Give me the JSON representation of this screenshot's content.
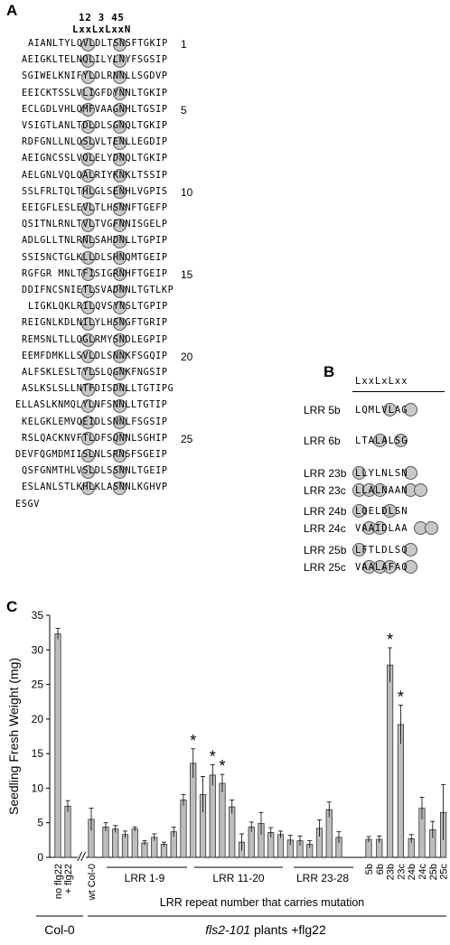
{
  "panel_a": {
    "label": "A",
    "header_numbers": "12 3 45",
    "header_motif": "LxxLxLxxN",
    "rows": [
      {
        "text": "AIANLTYLQVLDLTSNSFTGKIP",
        "indent": 1,
        "num": "1"
      },
      {
        "text": "AEIGKLTELNQLILYLNYFSGSIP",
        "indent": 0,
        "num": ""
      },
      {
        "text": "SGIWELKNIFYLDLRNNLLSGDVP",
        "indent": 0,
        "num": ""
      },
      {
        "text": "EEICKTSSLVLIGFDYNNLTGKIP",
        "indent": 0,
        "num": ""
      },
      {
        "text": "ECLGDLVHLQMFVAAGNHLTGSIP",
        "indent": 0,
        "num": "5"
      },
      {
        "text": "VSIGTLANLTDLDLSGNQLTGKIP",
        "indent": 0,
        "num": ""
      },
      {
        "text": "RDFGNLLNLQSLVLTENLLEGDIP",
        "indent": 0,
        "num": ""
      },
      {
        "text": "AEIGNCSSLVQLELYDNQLTGKIP",
        "indent": 0,
        "num": ""
      },
      {
        "text": "AELGNLVQLQALRIYKNKLTSSIP",
        "indent": 0,
        "num": ""
      },
      {
        "text": "SSLFRLTQLTHLGLSENHLVGPIS",
        "indent": 0,
        "num": "10"
      },
      {
        "text": "EEIGFLESLEVLTLHSNNFTGEFP",
        "indent": 0,
        "num": ""
      },
      {
        "text": "QSITNLRNLTVLTVGFNNISGELP",
        "indent": 0,
        "num": ""
      },
      {
        "text": "ADLGLLTNLRNLSAHDNLLTGPIP",
        "indent": 0,
        "num": ""
      },
      {
        "text": "SSISNCTGLKLLDLSHNQMTGEIP",
        "indent": 0,
        "num": ""
      },
      {
        "text": "RGFGR MNLTFISIGRNHFTGEIP",
        "indent": 0,
        "num": "15"
      },
      {
        "text": "DDIFNCSNIETLSVADNNLTGTLKP",
        "indent": 0,
        "num": ""
      },
      {
        "text": "LIGKLQKLRILQVSYNSLTGPIP",
        "indent": 1,
        "num": ""
      },
      {
        "text": "REIGNLKDLNILYLHSNGFTGRIP",
        "indent": 0,
        "num": ""
      },
      {
        "text": "REMSNLTLLQGLRMYSNDLEGPIP",
        "indent": 0,
        "num": ""
      },
      {
        "text": "EEMFDMKLLSVLDLSNNKFSGQIP",
        "indent": 0,
        "num": "20"
      },
      {
        "text": "ALFSKLESLTYLSLQGNKFNGSIP",
        "indent": 0,
        "num": ""
      },
      {
        "text": "ASLKSLSLLNTFDISDNLLTGTIPG",
        "indent": 0,
        "num": ""
      },
      {
        "text": "ELLASLKNMQLYLNFSNNLLTGTIP",
        "indent": -1,
        "num": ""
      },
      {
        "text": "KELGKLEMVQEIDLSNNLFSGSIP",
        "indent": 0,
        "num": ""
      },
      {
        "text": "RSLQACKNVFTLDFSQNNLSGHIP",
        "indent": 0,
        "num": "25"
      },
      {
        "text": "DEVFQGMDMIISLNLSRNSFSGEIP",
        "indent": -1,
        "num": ""
      },
      {
        "text": "QSFGNMTHLVSLDLSSNNLTGEIP",
        "indent": 0,
        "num": ""
      },
      {
        "text": "ESLANLSTLKHLKLASNNLKGHVP",
        "indent": 0,
        "num": ""
      },
      {
        "text": "ESGV",
        "indent": -1,
        "num": ""
      }
    ]
  },
  "panel_b": {
    "label": "B",
    "header": "LxxLxLxx",
    "groups": [
      [
        {
          "name": "LRR 5b",
          "seq": "LQMLVLAG",
          "circles": [
            3,
            5
          ]
        }
      ],
      [
        {
          "name": "LRR 6b",
          "seq": "LTALALSG",
          "circles": [
            2,
            4
          ]
        }
      ],
      [
        {
          "name": "LRR 23b",
          "seq": "LLYLNLSN",
          "circles": [
            0,
            5
          ]
        },
        {
          "name": "LRR 23c",
          "seq": "LLALNAAN",
          "circles": [
            0,
            1,
            2,
            5,
            6
          ]
        }
      ],
      [
        {
          "name": "LRR 24b",
          "seq": "LQELDLSN",
          "circles": [
            0,
            3
          ]
        },
        {
          "name": "LRR 24c",
          "seq": "VAAIDLAA",
          "circles": [
            1,
            2,
            6,
            7
          ]
        }
      ],
      [
        {
          "name": "LRR 25b",
          "seq": "LFTLDLSQ",
          "circles": [
            0,
            5
          ]
        },
        {
          "name": "LRR 25c",
          "seq": "VAALAFAQ",
          "circles": [
            1,
            2,
            3,
            5
          ]
        }
      ]
    ]
  },
  "panel_c": {
    "label": "C",
    "chart_data": {
      "type": "bar",
      "ylabel": "Seedling Fresh Weight (mg)",
      "ylim": [
        0,
        35
      ],
      "yticks": [
        0,
        5,
        10,
        15,
        20,
        25,
        30,
        35
      ],
      "bars_col0": [
        {
          "label": "no flg22",
          "value": 32.3,
          "err": 0.8
        },
        {
          "label": "+ flg22",
          "value": 7.4,
          "err": 0.8
        }
      ],
      "wt_col0": {
        "label": "wt Col-0",
        "value": 5.5,
        "err": 1.6
      },
      "mutants_1_28": [
        4.4,
        4.1,
        3.3,
        4.1,
        2.1,
        2.9,
        1.9,
        3.7,
        8.3,
        13.6,
        9.1,
        11.9,
        10.7,
        7.3,
        2.2,
        4.4,
        4.9,
        3.6,
        3.3,
        2.5,
        2.4,
        1.9,
        4.2,
        6.9,
        2.9
      ],
      "mutants_1_28_err": [
        0.6,
        0.5,
        0.5,
        0.3,
        0.3,
        0.5,
        0.3,
        0.7,
        0.8,
        2.1,
        2.6,
        1.5,
        1.3,
        1.0,
        1.2,
        0.7,
        1.6,
        0.7,
        0.5,
        0.7,
        0.7,
        0.5,
        1.2,
        1.1,
        0.8
      ],
      "mutants_sig_index": [
        9,
        11,
        12
      ],
      "ranges": [
        {
          "label": "LRR 1-9"
        },
        {
          "label": "LRR 11-20"
        },
        {
          "label": "LRR 23-28"
        }
      ],
      "substitutions": [
        {
          "label": "5b",
          "value": 2.6,
          "err": 0.4
        },
        {
          "label": "6b",
          "value": 2.6,
          "err": 0.5
        },
        {
          "label": "23b",
          "value": 27.8,
          "err": 2.5,
          "sig": true
        },
        {
          "label": "23c",
          "value": 19.2,
          "err": 2.8,
          "sig": true
        },
        {
          "label": "24b",
          "value": 2.7,
          "err": 0.6
        },
        {
          "label": "24c",
          "value": 7.1,
          "err": 1.6
        },
        {
          "label": "25b",
          "value": 4.0,
          "err": 1.2
        },
        {
          "label": "25c",
          "value": 6.5,
          "err": 4.0
        }
      ],
      "significance_mark": "*",
      "axis_break": "//",
      "xlabel_mutation": "LRR repeat number that carries mutation",
      "group_col0": "Col-0",
      "group_fls_italic": "fls2-101",
      "group_fls_rest": " plants +flg22"
    }
  }
}
